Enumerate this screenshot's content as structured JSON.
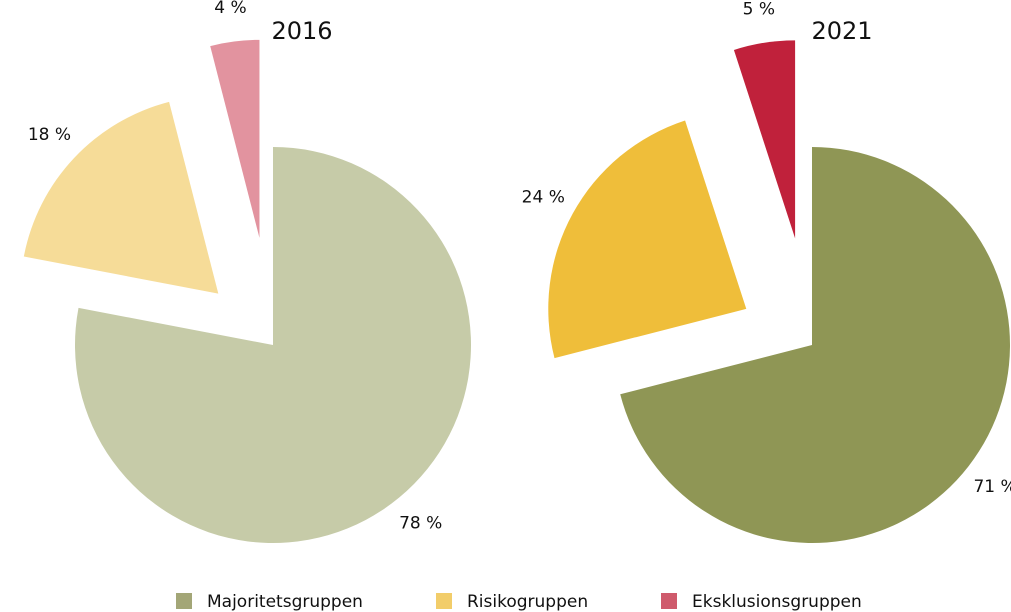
{
  "chart_data": [
    {
      "type": "pie",
      "title": "2016",
      "categories": [
        "Majoritetsgruppen",
        "Risikogruppen",
        "Eksklusionsgruppen"
      ],
      "values": [
        78,
        18,
        4
      ],
      "value_labels": [
        "78 %",
        "18 %",
        "4 %"
      ],
      "colors": [
        "#c6cba8",
        "#f6dc98",
        "#e2939f"
      ]
    },
    {
      "type": "pie",
      "title": "2021",
      "categories": [
        "Majoritetsgruppen",
        "Risikogruppen",
        "Eksklusionsgruppen"
      ],
      "values": [
        71,
        24,
        5
      ],
      "value_labels": [
        "71 %",
        "24 %",
        "5 %"
      ],
      "colors": [
        "#8f9655",
        "#efbe3a",
        "#c0213b"
      ]
    }
  ],
  "legend_colors": [
    "#a3a677",
    "#f2cd6a",
    "#cf5a6c"
  ]
}
